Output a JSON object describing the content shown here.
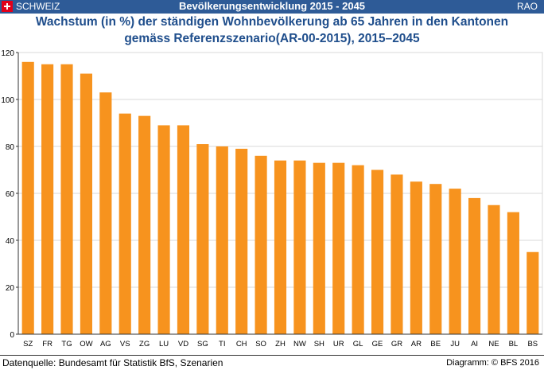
{
  "header": {
    "country": "SCHWEIZ",
    "title": "Bevölkerungsentwicklung 2015 - 2045",
    "region": "RAO"
  },
  "chart_data": {
    "type": "bar",
    "title": "Wachstum (in %) der ständigen Wohnbevölkerung ab 65 Jahren in den Kantonen gemäss Referenzszenario(AR-00-2015), 2015–2045",
    "title_lines": [
      "Wachstum (in %) der ständigen Wohnbevölkerung ab 65 Jahren in den Kantonen",
      "gemäss Referenzszenario(AR-00-2015), 2015–2045"
    ],
    "xlabel": "",
    "ylabel": "",
    "categories": [
      "SZ",
      "FR",
      "TG",
      "OW",
      "AG",
      "VS",
      "ZG",
      "LU",
      "VD",
      "SG",
      "TI",
      "CH",
      "SO",
      "ZH",
      "NW",
      "SH",
      "UR",
      "GL",
      "GE",
      "GR",
      "AR",
      "BE",
      "JU",
      "AI",
      "NE",
      "BL",
      "BS"
    ],
    "values": [
      116,
      115,
      115,
      111,
      103,
      94,
      93,
      89,
      89,
      81,
      80,
      79,
      76,
      74,
      74,
      73,
      73,
      72,
      70,
      68,
      65,
      64,
      62,
      58,
      55,
      52,
      35
    ],
    "ylim": [
      0,
      120
    ],
    "yticks": [
      0,
      20,
      40,
      60,
      80,
      100,
      120
    ],
    "grid": true,
    "bar_color": "#f7931e"
  },
  "footer": {
    "source": "Datenquelle:  Bundesamt für Statistik BfS, Szenarien",
    "credit": "Diagramm: © BFS 2016"
  }
}
